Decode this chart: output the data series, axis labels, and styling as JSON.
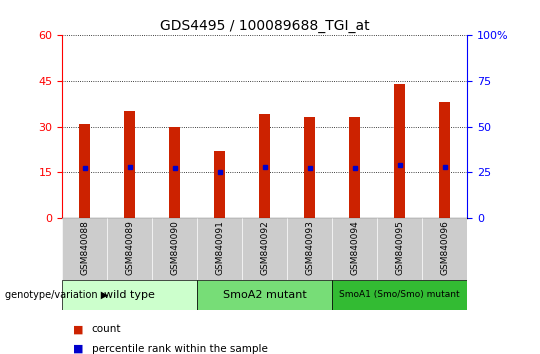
{
  "title": "GDS4495 / 100089688_TGI_at",
  "samples": [
    "GSM840088",
    "GSM840089",
    "GSM840090",
    "GSM840091",
    "GSM840092",
    "GSM840093",
    "GSM840094",
    "GSM840095",
    "GSM840096"
  ],
  "counts": [
    31,
    35,
    30,
    22,
    34,
    33,
    33,
    44,
    38
  ],
  "percentile_ranks": [
    27,
    28,
    27,
    25,
    28,
    27,
    27,
    29,
    28
  ],
  "groups": [
    {
      "label": "wild type",
      "start": 0,
      "end": 3,
      "color": "#ccffcc"
    },
    {
      "label": "SmoA2 mutant",
      "start": 3,
      "end": 6,
      "color": "#77dd77"
    },
    {
      "label": "SmoA1 (Smo/Smo) mutant",
      "start": 6,
      "end": 9,
      "color": "#33bb33"
    }
  ],
  "left_ylim": [
    0,
    60
  ],
  "left_yticks": [
    0,
    15,
    30,
    45,
    60
  ],
  "right_ylim": [
    0,
    100
  ],
  "right_yticks": [
    0,
    25,
    50,
    75,
    100
  ],
  "bar_color": "#cc2200",
  "dot_color": "#0000cc",
  "bar_width": 0.25,
  "title_fontsize": 10,
  "tick_fontsize": 8,
  "sample_fontsize": 6.5,
  "group_fontsize": 8,
  "legend_fontsize": 7.5,
  "background_color": "#ffffff"
}
